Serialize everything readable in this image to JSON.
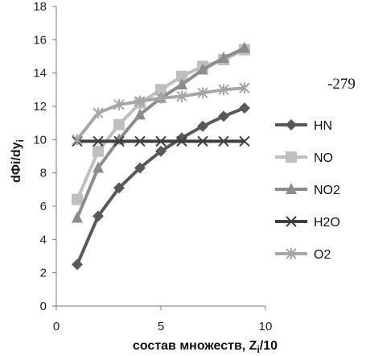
{
  "chart_data": {
    "type": "line",
    "xlabel": "состав множеств, Z",
    "xlabel_sub": "i",
    "xlabel_tail": "/10",
    "ylabel": "dΦi/dy",
    "ylabel_sub": "i",
    "xlim": [
      0,
      10
    ],
    "ylim": [
      0,
      18
    ],
    "xticks": [
      0,
      5,
      10
    ],
    "yticks": [
      0,
      2,
      4,
      6,
      8,
      10,
      12,
      14,
      16,
      18
    ],
    "annotation": "-279",
    "legend_position": "right",
    "grid": false,
    "series": [
      {
        "name": "HN",
        "color": "#595959",
        "marker": "diamond",
        "x": [
          1,
          2,
          3,
          4,
          5,
          6,
          7,
          8,
          9
        ],
        "y": [
          2.5,
          5.4,
          7.1,
          8.3,
          9.3,
          10.1,
          10.8,
          11.4,
          11.9
        ]
      },
      {
        "name": "NO",
        "color": "#bfbfbf",
        "marker": "square",
        "x": [
          1,
          2,
          3,
          4,
          5,
          6,
          7,
          8,
          9
        ],
        "y": [
          6.4,
          9.3,
          10.9,
          12.2,
          13.0,
          13.8,
          14.4,
          14.8,
          15.4
        ]
      },
      {
        "name": "NO2",
        "color": "#8c8c8c",
        "marker": "triangle",
        "x": [
          1,
          2,
          3,
          4,
          5,
          6,
          7,
          8,
          9
        ],
        "y": [
          5.3,
          8.3,
          10.0,
          11.5,
          12.5,
          13.3,
          14.2,
          14.9,
          15.5
        ]
      },
      {
        "name": "H2O",
        "color": "#3f3f3f",
        "marker": "x",
        "x": [
          1,
          2,
          3,
          4,
          5,
          6,
          7,
          8,
          9
        ],
        "y": [
          9.9,
          9.9,
          9.9,
          9.9,
          9.9,
          9.9,
          9.9,
          9.9,
          9.9
        ]
      },
      {
        "name": "O2",
        "color": "#a6a6a6",
        "marker": "asterisk",
        "x": [
          1,
          2,
          3,
          4,
          5,
          6,
          7,
          8,
          9
        ],
        "y": [
          10.0,
          11.6,
          12.1,
          12.3,
          12.5,
          12.6,
          12.8,
          13.0,
          13.1
        ]
      }
    ]
  }
}
